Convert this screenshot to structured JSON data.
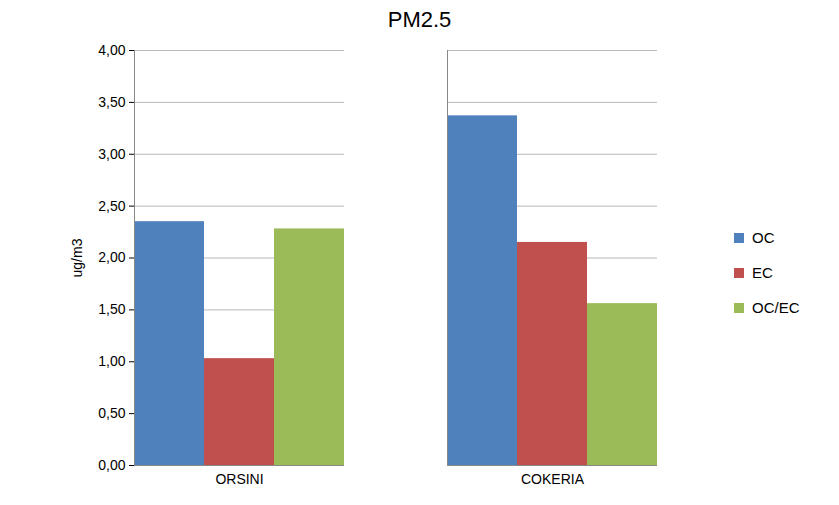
{
  "chart_data": {
    "type": "bar",
    "title": "PM2.5",
    "y_label": "ug/m3",
    "categories": [
      "ORSINI",
      "COKERIA"
    ],
    "series": [
      {
        "name": "OC",
        "color": "#4F81BD",
        "values": [
          2.35,
          3.37
        ]
      },
      {
        "name": "EC",
        "color": "#C0504D",
        "values": [
          1.03,
          2.15
        ]
      },
      {
        "name": "OC/EC",
        "color": "#9BBB59",
        "values": [
          2.28,
          1.56
        ]
      }
    ],
    "ylim": [
      0,
      4
    ],
    "yticks": [
      {
        "value": 0,
        "label": "0,00"
      },
      {
        "value": 0.5,
        "label": "0,50"
      },
      {
        "value": 1,
        "label": "1,00"
      },
      {
        "value": 1.5,
        "label": "1,50"
      },
      {
        "value": 2,
        "label": "2,00"
      },
      {
        "value": 2.5,
        "label": "2,50"
      },
      {
        "value": 3,
        "label": "3,00"
      },
      {
        "value": 3.5,
        "label": "3,50"
      },
      {
        "value": 4,
        "label": "4,00"
      }
    ],
    "grid": true,
    "legend": "right"
  }
}
